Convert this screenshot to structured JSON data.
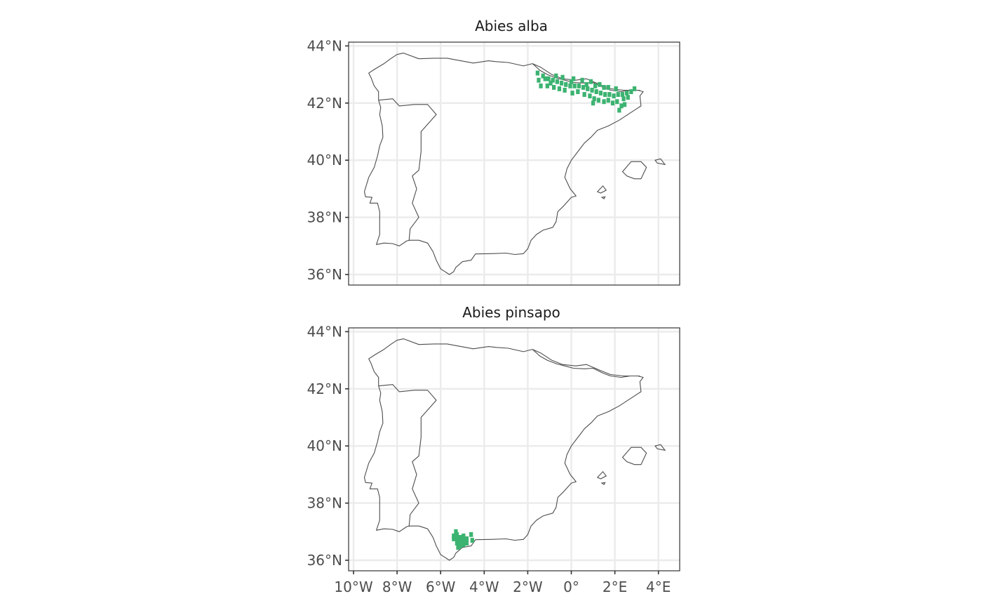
{
  "colors": {
    "background": "#ffffff",
    "panel_border": "#333333",
    "grid": "#ebebeb",
    "coastline": "#4d4d4d",
    "occurrence": "#3cb371",
    "tick_text": "#4d4d4d",
    "title_text": "#1a1a1a"
  },
  "chart_data": {
    "type": "map",
    "map_area": "Iberian Peninsula and Balearic Islands",
    "xlim": [
      -10.4,
      4.9
    ],
    "ylim": [
      35.7,
      44.2
    ],
    "x_ticks": [
      -10,
      -8,
      -6,
      -4,
      -2,
      0,
      2,
      4
    ],
    "x_tick_labels": [
      "10°W",
      "8°W",
      "6°W",
      "4°W",
      "2°W",
      "0°",
      "2°E",
      "4°E"
    ],
    "y_ticks": [
      36,
      38,
      40,
      42,
      44
    ],
    "y_tick_labels": [
      "36°N",
      "38°N",
      "40°N",
      "42°N",
      "44°N"
    ],
    "grid": true,
    "legend": "none",
    "panels": [
      {
        "title": "Abies alba",
        "occurrence_color": "#3cb371",
        "occurrences": [
          [
            -1.55,
            43.05
          ],
          [
            -1.5,
            42.8
          ],
          [
            -1.4,
            42.6
          ],
          [
            -1.2,
            42.85
          ],
          [
            -1.05,
            42.85
          ],
          [
            -0.85,
            42.8
          ],
          [
            -0.65,
            42.75
          ],
          [
            -0.45,
            42.7
          ],
          [
            -0.25,
            42.65
          ],
          [
            -0.05,
            42.6
          ],
          [
            0.15,
            42.6
          ],
          [
            0.35,
            42.6
          ],
          [
            0.55,
            42.55
          ],
          [
            0.75,
            42.5
          ],
          [
            0.95,
            42.45
          ],
          [
            1.15,
            42.4
          ],
          [
            1.35,
            42.35
          ],
          [
            1.55,
            42.3
          ],
          [
            1.75,
            42.3
          ],
          [
            1.95,
            42.25
          ],
          [
            2.15,
            42.3
          ],
          [
            2.35,
            42.3
          ],
          [
            2.55,
            42.35
          ],
          [
            2.75,
            42.4
          ],
          [
            2.9,
            42.5
          ],
          [
            -0.8,
            42.55
          ],
          [
            -0.55,
            42.5
          ],
          [
            -0.3,
            42.45
          ],
          [
            0.05,
            42.35
          ],
          [
            0.3,
            42.4
          ],
          [
            0.6,
            42.3
          ],
          [
            0.85,
            42.25
          ],
          [
            1.05,
            42.15
          ],
          [
            1.25,
            42.1
          ],
          [
            1.5,
            42.05
          ],
          [
            1.7,
            42.1
          ],
          [
            1.9,
            42.0
          ],
          [
            2.1,
            42.05
          ],
          [
            2.3,
            41.9
          ],
          [
            2.2,
            41.75
          ],
          [
            -0.7,
            42.95
          ],
          [
            -0.4,
            42.9
          ],
          [
            0.1,
            42.85
          ],
          [
            0.5,
            42.8
          ],
          [
            0.9,
            42.75
          ],
          [
            1.3,
            42.65
          ],
          [
            1.7,
            42.55
          ],
          [
            2.05,
            42.5
          ],
          [
            -1.3,
            42.95
          ],
          [
            0.0,
            42.75
          ],
          [
            0.7,
            42.65
          ],
          [
            1.1,
            42.6
          ],
          [
            1.5,
            42.55
          ],
          [
            2.4,
            42.15
          ],
          [
            2.6,
            42.2
          ],
          [
            -1.1,
            42.6
          ],
          [
            -0.95,
            42.7
          ],
          [
            1.0,
            42.0
          ],
          [
            2.45,
            41.95
          ]
        ]
      },
      {
        "title": "Abies pinsapo",
        "occurrence_color": "#3cb371",
        "occurrences": [
          [
            -5.4,
            36.85
          ],
          [
            -5.4,
            36.75
          ],
          [
            -5.25,
            36.9
          ],
          [
            -5.25,
            36.75
          ],
          [
            -5.25,
            36.6
          ],
          [
            -5.1,
            36.8
          ],
          [
            -5.1,
            36.65
          ],
          [
            -5.1,
            36.5
          ],
          [
            -4.95,
            36.85
          ],
          [
            -4.95,
            36.7
          ],
          [
            -4.95,
            36.55
          ],
          [
            -4.8,
            36.75
          ],
          [
            -4.8,
            36.6
          ],
          [
            -4.6,
            36.9
          ],
          [
            -5.2,
            36.45
          ],
          [
            -4.9,
            36.6
          ],
          [
            -5.3,
            37.0
          ],
          [
            -4.55,
            36.7
          ]
        ]
      }
    ]
  }
}
